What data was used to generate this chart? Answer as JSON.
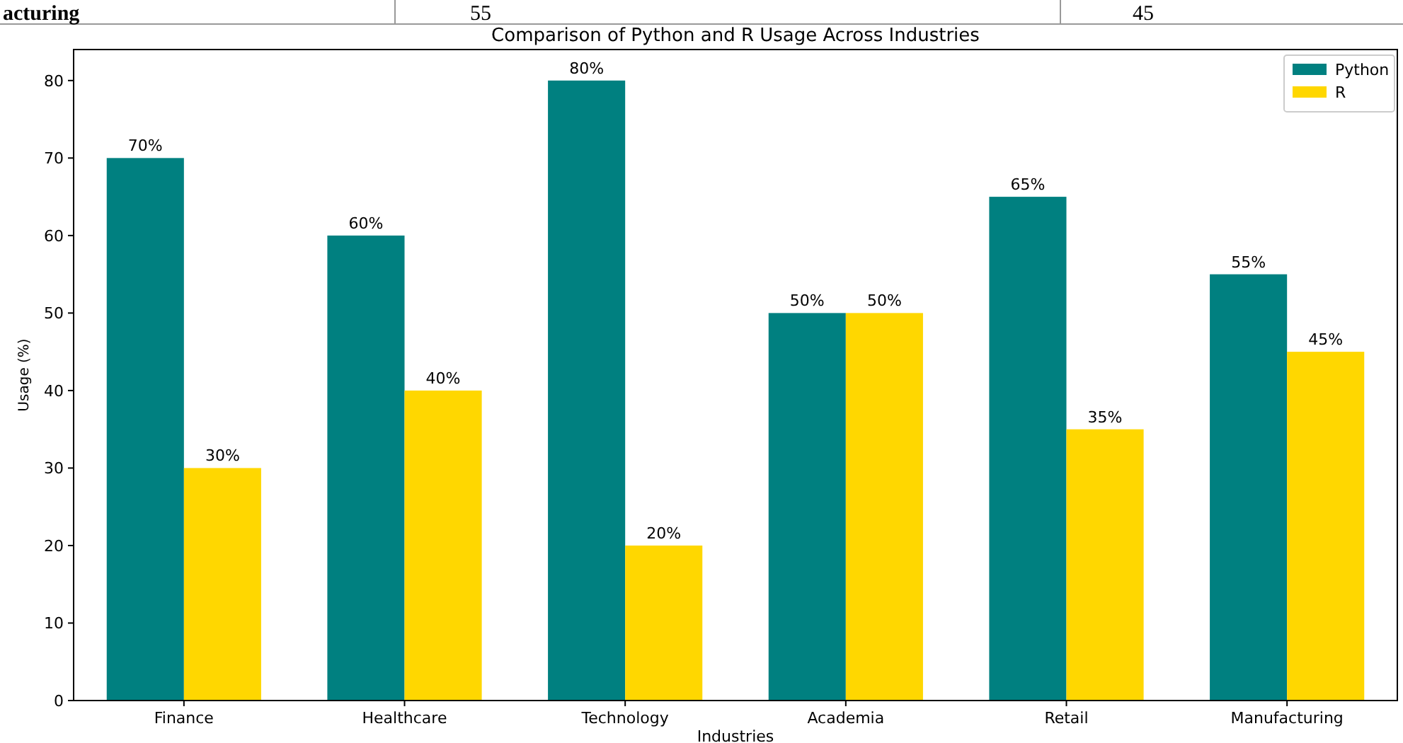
{
  "chart_data": {
    "type": "bar",
    "title": "Comparison of Python and R Usage Across Industries",
    "xlabel": "Industries",
    "ylabel": "Usage (%)",
    "categories": [
      "Finance",
      "Healthcare",
      "Technology",
      "Academia",
      "Retail",
      "Manufacturing"
    ],
    "series": [
      {
        "name": "Python",
        "color": "#008080",
        "values": [
          70,
          60,
          80,
          50,
          65,
          55
        ],
        "value_labels": [
          "70%",
          "60%",
          "80%",
          "50%",
          "65%",
          "55%"
        ]
      },
      {
        "name": "R",
        "color": "#ffd700",
        "values": [
          30,
          40,
          20,
          50,
          35,
          45
        ],
        "value_labels": [
          "30%",
          "40%",
          "20%",
          "50%",
          "35%",
          "45%"
        ]
      }
    ],
    "ylim": [
      0,
      84
    ],
    "yticks": [
      0,
      10,
      20,
      30,
      40,
      50,
      60,
      70,
      80
    ],
    "grid": false,
    "legend": "top right",
    "annotations": [
      "acturing",
      "55",
      "45"
    ]
  }
}
